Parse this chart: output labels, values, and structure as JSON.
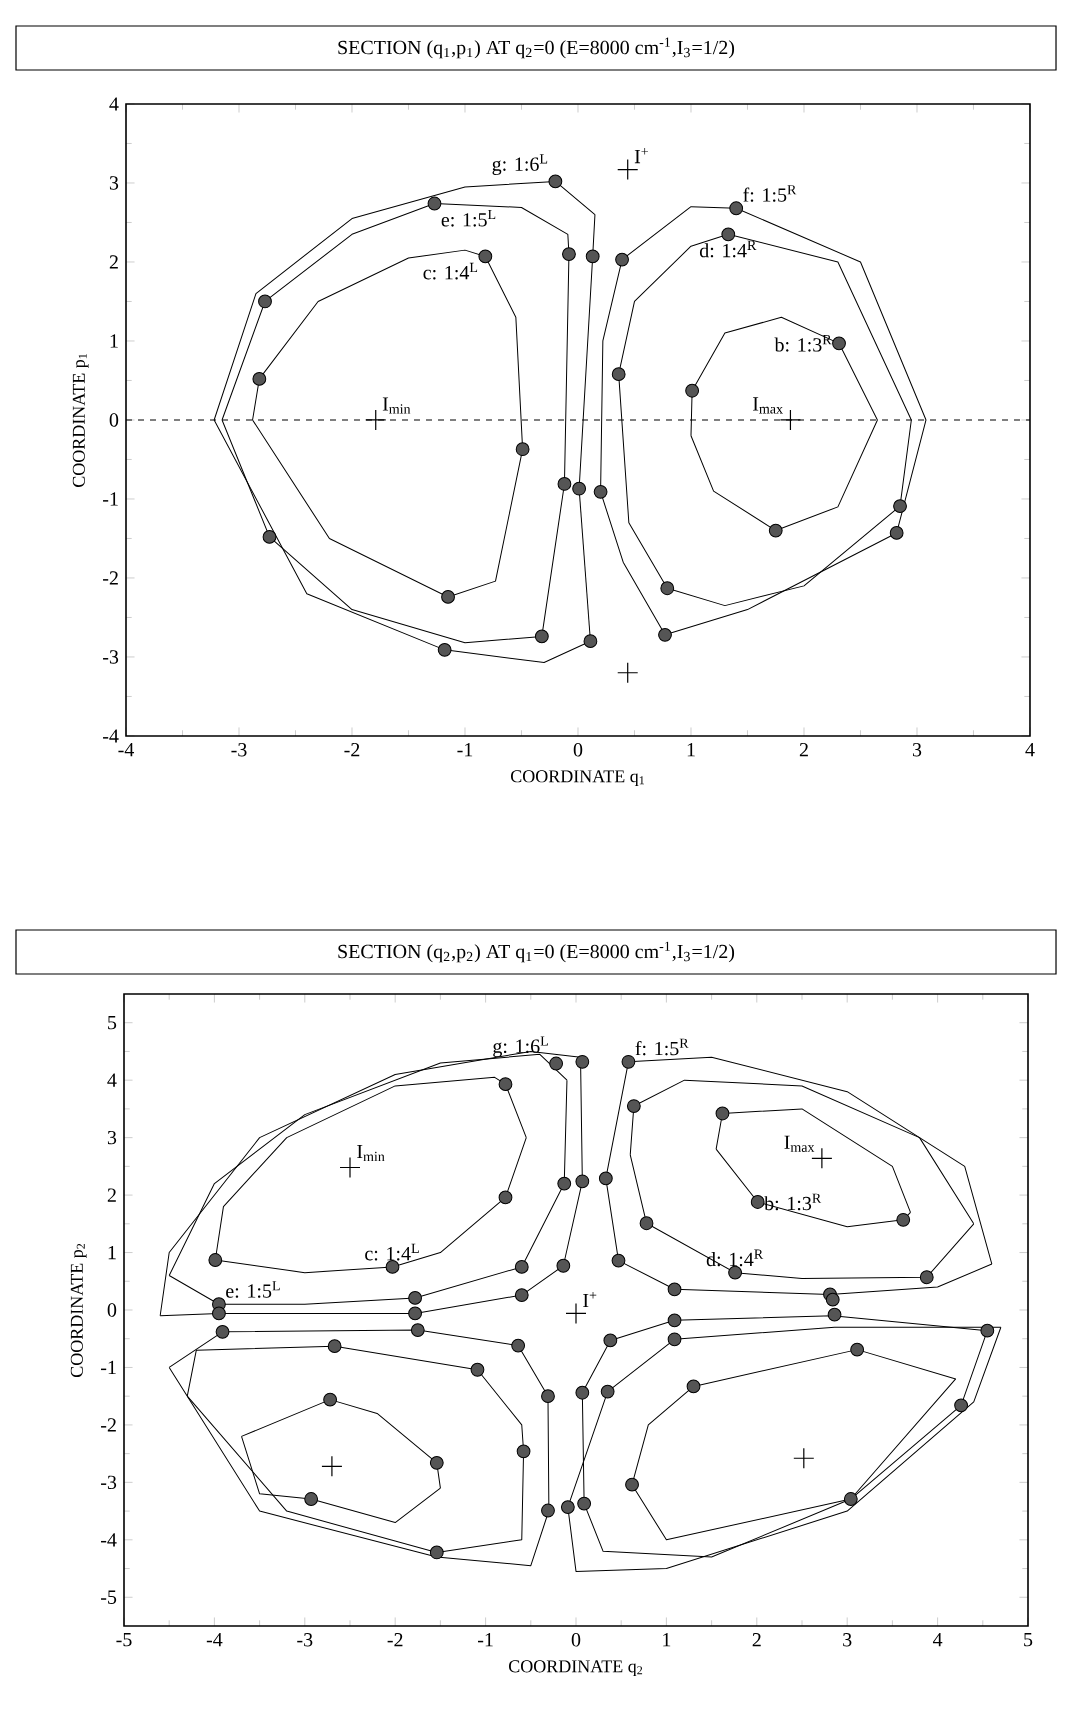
{
  "chart_data": [
    {
      "type": "line",
      "title": "SECTION (q$_{1}$,p$_{1}$) AT q$_{2}$=0 (E=8000 cm$^{-1}$,I$_{3}$=1/2)",
      "xlabel": "COORDINATE q$_{1}$",
      "ylabel": "COORDINATE p$_{1}$",
      "xlim": [
        -4,
        4
      ],
      "ylim": [
        -4,
        4
      ],
      "xticks": [
        -4,
        -3,
        -2,
        -1,
        0,
        1,
        2,
        3,
        4
      ],
      "yticks": [
        -4,
        -3,
        -2,
        -1,
        0,
        1,
        2,
        3,
        4
      ],
      "ref_lines": [
        {
          "axis": "y",
          "value": 0,
          "line_style": "dashed",
          "color": "#000000"
        }
      ],
      "series": [
        {
          "color": "#000000",
          "x": [
            -2.88,
            -2.82,
            -2.3,
            -1.5,
            -1.0,
            -0.82,
            -0.55,
            -0.49
          ],
          "values": [
            0,
            0.52,
            1.5,
            2.05,
            2.15,
            2.07,
            1.3,
            -0.37
          ]
        },
        {
          "color": "#000000",
          "x": [
            -2.88,
            -2.2,
            -1.15,
            -0.73,
            -0.49
          ],
          "values": [
            0,
            -1.5,
            -2.24,
            -2.04,
            -0.37
          ]
        },
        {
          "color": "#000000",
          "x": [
            -3.15,
            -2.77,
            -2.0,
            -1.27,
            -0.5,
            -0.09,
            -0.08
          ],
          "values": [
            0,
            1.5,
            2.35,
            2.74,
            2.69,
            2.35,
            2.1
          ]
        },
        {
          "color": "#000000",
          "x": [
            -3.15,
            -2.73,
            -2.0,
            -1.0,
            -0.32,
            -0.12,
            -0.08
          ],
          "values": [
            0,
            -1.48,
            -2.4,
            -2.82,
            -2.74,
            -0.81,
            2.1
          ]
        },
        {
          "color": "#000000",
          "x": [
            -3.22,
            -2.85,
            -2.0,
            -1.0,
            -0.2,
            0.15
          ],
          "values": [
            0,
            1.6,
            2.55,
            2.95,
            3.02,
            2.6
          ]
        },
        {
          "color": "#000000",
          "x": [
            0.01,
            0.13,
            0.15
          ],
          "values": [
            -0.87,
            2.07,
            2.6
          ]
        },
        {
          "color": "#000000",
          "x": [
            0.01,
            0.11
          ],
          "values": [
            -0.87,
            -2.8
          ]
        },
        {
          "color": "#000000",
          "x": [
            -3.22,
            -2.4,
            -1.18,
            -0.3,
            0.11
          ],
          "values": [
            0,
            -2.2,
            -2.91,
            -3.07,
            -2.8
          ]
        },
        {
          "color": "#000000",
          "x": [
            0.2,
            0.22,
            0.39,
            1.0,
            1.4,
            2.5,
            3.08
          ],
          "values": [
            -0.91,
            1.0,
            2.03,
            2.7,
            2.68,
            2.0,
            0
          ]
        },
        {
          "color": "#000000",
          "x": [
            0.2,
            0.4,
            0.77,
            1.5,
            2.82,
            3.08
          ],
          "values": [
            -0.91,
            -1.8,
            -2.72,
            -2.4,
            -1.43,
            0
          ]
        },
        {
          "color": "#000000",
          "x": [
            0.36,
            0.5,
            1.0,
            1.33,
            2.3,
            2.95
          ],
          "values": [
            0.58,
            1.5,
            2.2,
            2.35,
            2.0,
            0
          ]
        },
        {
          "color": "#000000",
          "x": [
            0.36,
            0.45,
            0.79,
            1.3,
            2.0,
            2.85,
            2.95
          ],
          "values": [
            0.58,
            -1.3,
            -2.13,
            -2.35,
            -2.1,
            -1.09,
            0
          ]
        },
        {
          "color": "#000000",
          "x": [
            1.0,
            1.01,
            1.3,
            1.8,
            2.31,
            2.65,
            null,
            1.0,
            1.2,
            1.75,
            2.3,
            2.65
          ],
          "values": [
            -0.2,
            0.37,
            1.1,
            1.3,
            0.97,
            0,
            null,
            -0.2,
            -0.9,
            -1.4,
            -1.1,
            0
          ]
        },
        {
          "type": "scatter",
          "color": "#555555",
          "marker": "circle",
          "x": [
            -0.2,
            -1.27,
            -0.82,
            -0.08,
            0.13,
            0.39,
            1.4,
            1.33,
            2.31,
            1.01,
            0.36,
            -2.77,
            -2.82,
            -0.49,
            -0.12,
            0.01,
            0.2,
            -2.73,
            -1.15,
            -0.32,
            -1.18,
            0.11,
            0.79,
            0.77,
            1.75,
            2.85,
            2.82
          ],
          "values": [
            3.02,
            2.74,
            2.07,
            2.1,
            2.07,
            2.03,
            2.68,
            2.35,
            0.97,
            0.37,
            0.58,
            1.5,
            0.52,
            -0.37,
            -0.81,
            -0.87,
            -0.91,
            -1.48,
            -2.24,
            -2.74,
            -2.91,
            -2.8,
            -2.13,
            -2.72,
            -1.4,
            -1.09,
            -1.43
          ]
        },
        {
          "type": "scatter",
          "color": "#000000",
          "x": [
            -1.79,
            1.88,
            0.44,
            0.44
          ],
          "values": [
            0,
            0,
            3.17,
            -3.2
          ]
        }
      ],
      "annotations": [
        {
          "text": "g: 1:6$^{L}$",
          "x": -0.2,
          "y": 3.02
        },
        {
          "text": "e: 1:5$^{L}$",
          "x": -1.27,
          "y": 2.74
        },
        {
          "text": "c: 1:4$^{L}$",
          "x": -0.82,
          "y": 2.07
        },
        {
          "text": "f: 1:5$^{R}$",
          "x": 1.4,
          "y": 2.68
        },
        {
          "text": "d: 1:4$^{R}$",
          "x": 1.33,
          "y": 2.35
        },
        {
          "text": "b: 1:3$^{R}$",
          "x": 2.31,
          "y": 0.97
        },
        {
          "text": "I$_{min}$",
          "x": -1.79,
          "y": 0
        },
        {
          "text": "I$_{max}$",
          "x": 1.88,
          "y": 0
        },
        {
          "text": "I$^{+}$",
          "x": 0.44,
          "y": 3.17
        }
      ]
    },
    {
      "type": "line",
      "title": "SECTION (q$_{2}$,p$_{2}$) AT q$_{1}$=0 (E=8000 cm$^{-1}$,I$_{3}$=1/2)",
      "xlabel": "COORDINATE q$_{2}$",
      "ylabel": "COORDINATE p$_{2}$",
      "xlim": [
        -5,
        5
      ],
      "ylim": [
        -5.5,
        5.5
      ],
      "xticks": [
        -5,
        -4,
        -3,
        -2,
        -1,
        0,
        1,
        2,
        3,
        4,
        5
      ],
      "yticks": [
        -5,
        -4,
        -3,
        -2,
        -1,
        0,
        1,
        2,
        3,
        4,
        5
      ],
      "series": [
        {
          "color": "#000000",
          "x": [
            -3.99,
            -3.9,
            -3.2,
            -2.0,
            -0.9,
            -0.78,
            -0.55
          ],
          "values": [
            0.87,
            1.8,
            3.0,
            3.9,
            4.05,
            3.93,
            3.0
          ]
        },
        {
          "color": "#000000",
          "x": [
            -3.99,
            -3.0,
            -2.03,
            -1.5,
            -0.78,
            -0.55
          ],
          "values": [
            0.87,
            0.65,
            0.75,
            1.0,
            1.96,
            3.0
          ]
        },
        {
          "color": "#000000",
          "x": [
            -4.5,
            -4.0,
            -3.0,
            -1.5,
            -0.4,
            -0.1
          ],
          "values": [
            0.6,
            2.2,
            3.4,
            4.3,
            4.45,
            4.0
          ]
        },
        {
          "color": "#000000",
          "x": [
            -4.5,
            -3.95,
            -3.0,
            -1.78,
            -0.6,
            -0.13,
            -0.1
          ],
          "values": [
            0.6,
            0.1,
            0.1,
            0.21,
            0.75,
            2.2,
            4.0
          ]
        },
        {
          "color": "#000000",
          "x": [
            -4.6,
            -4.5,
            -3.5,
            -2.0,
            -0.5,
            0.05,
            0.07
          ],
          "values": [
            -0.1,
            1.0,
            3.0,
            4.1,
            4.5,
            4.4,
            2.24
          ]
        },
        {
          "color": "#000000",
          "x": [
            -4.6,
            -3.95,
            -1.78,
            -0.6,
            -0.14,
            0.07
          ],
          "values": [
            -0.1,
            -0.06,
            -0.06,
            0.26,
            0.77,
            2.24
          ]
        },
        {
          "color": "#000000",
          "x": [
            1.55,
            1.62,
            2.5,
            3.5,
            3.7,
            null,
            1.55,
            2.01,
            3.0,
            3.62,
            3.7
          ],
          "values": [
            2.8,
            3.42,
            3.5,
            2.5,
            1.7,
            null,
            2.8,
            1.88,
            1.45,
            1.57,
            1.7
          ]
        },
        {
          "color": "#000000",
          "x": [
            0.6,
            0.64,
            1.2,
            2.5,
            3.8,
            4.4,
            null,
            0.6,
            0.78,
            1.76,
            2.5,
            3.88,
            4.4
          ],
          "values": [
            2.7,
            3.55,
            4.0,
            3.9,
            3.0,
            1.5,
            null,
            2.7,
            1.51,
            0.65,
            0.55,
            0.57,
            1.5
          ]
        },
        {
          "color": "#000000",
          "x": [
            0.33,
            0.58,
            1.5,
            3.0,
            4.3,
            4.6
          ],
          "values": [
            2.29,
            4.32,
            4.4,
            3.8,
            2.5,
            0.8
          ]
        },
        {
          "color": "#000000",
          "x": [
            0.33,
            0.47,
            1.09,
            2.81,
            4.0,
            4.6
          ],
          "values": [
            2.29,
            0.86,
            0.36,
            0.27,
            0.4,
            0.8
          ]
        },
        {
          "color": "#000000",
          "x": [
            -3.7,
            -2.72,
            -2.2,
            -1.54,
            -1.5
          ],
          "values": [
            -2.2,
            -1.56,
            -1.8,
            -2.66,
            -3.1
          ]
        },
        {
          "color": "#000000",
          "x": [
            -3.7,
            -3.5,
            -2.93,
            -2.0,
            -1.5
          ],
          "values": [
            -2.2,
            -3.2,
            -3.29,
            -3.7,
            -3.1
          ]
        },
        {
          "color": "#000000",
          "x": [
            -4.3,
            -4.2,
            -2.67,
            -1.09,
            -0.6,
            -0.58
          ],
          "values": [
            -1.5,
            -0.7,
            -0.63,
            -1.04,
            -2.0,
            -2.46
          ]
        },
        {
          "color": "#000000",
          "x": [
            -4.3,
            -3.2,
            -1.54,
            -0.6,
            -0.58
          ],
          "values": [
            -1.5,
            -3.5,
            -4.22,
            -4.0,
            -2.46
          ]
        },
        {
          "color": "#000000",
          "x": [
            -4.5,
            -3.91,
            -1.75,
            -0.64,
            -0.31,
            -0.3
          ],
          "values": [
            -1.0,
            -0.38,
            -0.35,
            -0.62,
            -1.5,
            -3.49
          ]
        },
        {
          "color": "#000000",
          "x": [
            -4.5,
            -3.5,
            -1.54,
            -0.5,
            -0.3
          ],
          "values": [
            -1.0,
            -3.5,
            -4.3,
            -4.45,
            -3.49
          ]
        },
        {
          "color": "#000000",
          "x": [
            0.62,
            0.8,
            1.3,
            3.11,
            4.2
          ],
          "values": [
            -3.04,
            -2.0,
            -1.33,
            -0.69,
            -1.2
          ]
        },
        {
          "color": "#000000",
          "x": [
            0.62,
            1.0,
            3.04,
            4.2
          ],
          "values": [
            -3.04,
            -4.0,
            -3.29,
            -1.2
          ]
        },
        {
          "color": "#000000",
          "x": [
            0.07,
            0.38,
            1.09,
            2.84,
            4.55
          ],
          "values": [
            -1.44,
            -0.53,
            -0.18,
            -0.1,
            -0.36
          ]
        },
        {
          "color": "#000000",
          "x": [
            0.07,
            0.09,
            0.3,
            1.5,
            3.04,
            4.26,
            4.55
          ],
          "values": [
            -1.44,
            -3.37,
            -4.2,
            -4.3,
            -3.29,
            -1.66,
            -0.36
          ]
        },
        {
          "color": "#000000",
          "x": [
            -0.09,
            0.35,
            1.09,
            2.86,
            4.7
          ],
          "values": [
            -3.43,
            -1.42,
            -0.51,
            -0.3,
            -0.3
          ]
        },
        {
          "color": "#000000",
          "x": [
            -0.09,
            0.0,
            1.0,
            3.0,
            4.4,
            4.7
          ],
          "values": [
            -3.43,
            -4.55,
            -4.5,
            -3.5,
            -1.6,
            -0.3
          ]
        },
        {
          "type": "scatter",
          "color": "#555555",
          "marker": "circle",
          "x": [
            -0.22,
            0.07,
            0.58,
            -0.78,
            0.64,
            1.62,
            -0.13,
            0.07,
            0.33,
            -0.78,
            2.01,
            3.62,
            0.78,
            -3.99,
            -2.03,
            -0.6,
            -0.14,
            0.47,
            1.76,
            3.88,
            1.09,
            -0.6,
            -1.78,
            2.81,
            -3.95,
            -3.95,
            -3.91,
            -1.78,
            -1.75,
            1.09,
            1.09,
            2.84,
            2.86,
            4.55,
            -2.67,
            -0.64,
            0.38,
            3.11,
            -1.09,
            1.3,
            -0.31,
            0.07,
            0.35,
            -2.72,
            4.26,
            -0.58,
            -1.54,
            0.62,
            -2.93,
            3.04,
            -0.31,
            -0.09,
            0.09,
            -1.54
          ],
          "values": [
            4.29,
            4.32,
            4.32,
            3.93,
            3.55,
            3.42,
            2.2,
            2.24,
            2.29,
            1.96,
            1.88,
            1.57,
            1.51,
            0.87,
            0.75,
            0.75,
            0.77,
            0.86,
            0.65,
            0.57,
            0.36,
            0.26,
            0.21,
            0.27,
            0.1,
            -0.06,
            -0.38,
            -0.06,
            -0.35,
            -0.18,
            -0.51,
            0.18,
            -0.08,
            -0.36,
            -0.63,
            -0.62,
            -0.53,
            -0.69,
            -1.04,
            -1.33,
            -1.5,
            -1.44,
            -1.42,
            -1.56,
            -1.66,
            -2.46,
            -2.66,
            -3.04,
            -3.29,
            -3.29,
            -3.49,
            -3.43,
            -3.37,
            -4.22
          ]
        },
        {
          "type": "scatter",
          "color": "#000000",
          "x": [
            -2.5,
            2.72,
            0,
            -2.7,
            2.52
          ],
          "values": [
            2.48,
            2.64,
            -0.06,
            -2.72,
            -2.58
          ]
        }
      ],
      "annotations": [
        {
          "text": "g: 1:6$^{L}$",
          "x": -0.22,
          "y": 4.29
        },
        {
          "text": "f: 1:5$^{R}$",
          "x": 0.58,
          "y": 4.32
        },
        {
          "text": "I$_{max}$",
          "x": 2.72,
          "y": 2.64
        },
        {
          "text": "I$_{min}$",
          "x": -2.5,
          "y": 2.48
        },
        {
          "text": "b: 1:3$^{R}$",
          "x": 2.01,
          "y": 1.88
        },
        {
          "text": "c: 1:4$^{L}$",
          "x": -2.03,
          "y": 0.75
        },
        {
          "text": "d: 1:4$^{R}$",
          "x": 1.76,
          "y": 0.65
        },
        {
          "text": "e: 1:5$^{L}$",
          "x": -3.95,
          "y": 0.1
        },
        {
          "text": "I$^{+}$",
          "x": 0,
          "y": -0.06
        }
      ]
    }
  ]
}
